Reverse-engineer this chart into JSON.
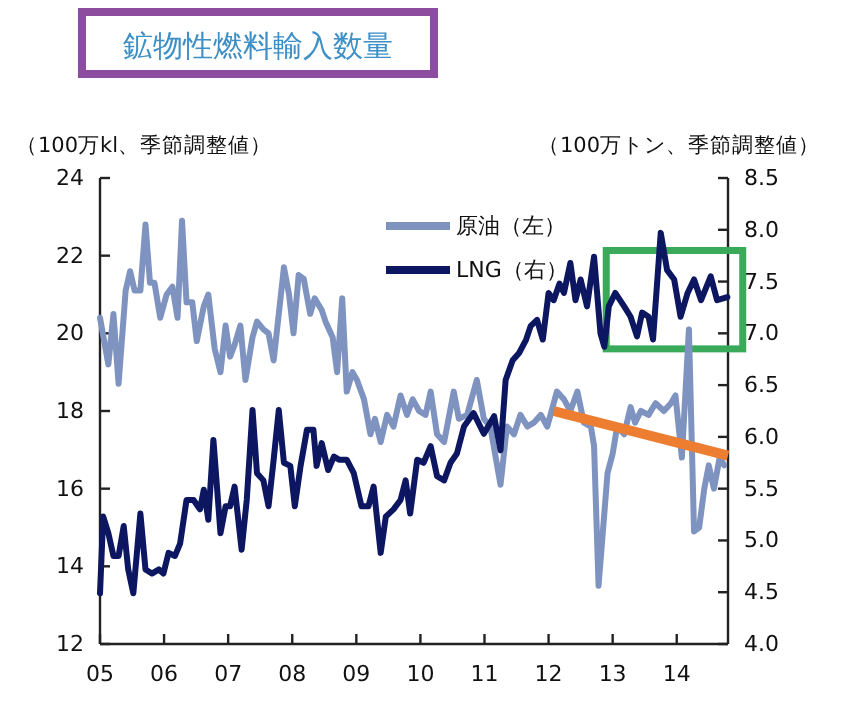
{
  "chart_data": {
    "type": "line",
    "title": "鉱物性燃料輸入数量",
    "ylabel": "（100万kl、季節調整値）",
    "y2label": "（100万トン、季節調整値）",
    "xlim": [
      2005,
      2014.8
    ],
    "xticks": [
      {
        "value": 2005,
        "label": "05"
      },
      {
        "value": 2006,
        "label": "06"
      },
      {
        "value": 2007,
        "label": "07"
      },
      {
        "value": 2008,
        "label": "08"
      },
      {
        "value": 2009,
        "label": "09"
      },
      {
        "value": 2010,
        "label": "10"
      },
      {
        "value": 2011,
        "label": "11"
      },
      {
        "value": 2012,
        "label": "12"
      },
      {
        "value": 2013,
        "label": "13"
      },
      {
        "value": 2014,
        "label": "14"
      }
    ],
    "ylim": [
      12,
      24
    ],
    "yticks": [
      12,
      14,
      16,
      18,
      20,
      22,
      24
    ],
    "y2lim": [
      4,
      8.5
    ],
    "y2ticks": [
      {
        "value": 4,
        "label": "4.0"
      },
      {
        "value": 4.5,
        "label": "4.5"
      },
      {
        "value": 5,
        "label": "5.0"
      },
      {
        "value": 5.5,
        "label": "5.5"
      },
      {
        "value": 6,
        "label": "6.0"
      },
      {
        "value": 6.5,
        "label": "6.5"
      },
      {
        "value": 7,
        "label": "7.0"
      },
      {
        "value": 7.5,
        "label": "7.5"
      },
      {
        "value": 8,
        "label": "8.0"
      },
      {
        "value": 8.5,
        "label": "8.5"
      }
    ],
    "legend": "top",
    "series": [
      {
        "name": "原油（左）",
        "color": "#7f93c0",
        "axis": "y",
        "x": [
          2005.0,
          2005.13,
          2005.21,
          2005.29,
          2005.4,
          2005.47,
          2005.54,
          2005.63,
          2005.71,
          2005.78,
          2005.85,
          2005.94,
          2006.04,
          2006.13,
          2006.21,
          2006.28,
          2006.35,
          2006.44,
          2006.51,
          2006.62,
          2006.69,
          2006.79,
          2006.88,
          2006.96,
          2007.03,
          2007.1,
          2007.19,
          2007.27,
          2007.38,
          2007.45,
          2007.55,
          2007.63,
          2007.71,
          2007.87,
          2007.95,
          2008.02,
          2008.1,
          2008.18,
          2008.28,
          2008.35,
          2008.46,
          2008.52,
          2008.63,
          2008.7,
          2008.78,
          2008.85,
          2008.94,
          2009.01,
          2009.12,
          2009.22,
          2009.29,
          2009.38,
          2009.48,
          2009.58,
          2009.69,
          2009.79,
          2009.88,
          2009.98,
          2010.08,
          2010.16,
          2010.26,
          2010.37,
          2010.52,
          2010.6,
          2010.73,
          2010.88,
          2010.99,
          2011.09,
          2011.25,
          2011.35,
          2011.46,
          2011.56,
          2011.67,
          2011.77,
          2011.88,
          2011.98,
          2012.13,
          2012.24,
          2012.34,
          2012.45,
          2012.55,
          2012.66,
          2012.71,
          2012.78,
          2012.92,
          2013.0,
          2013.07,
          2013.18,
          2013.28,
          2013.35,
          2013.44,
          2013.56,
          2013.67,
          2013.8,
          2013.91,
          2013.98,
          2014.08,
          2014.19,
          2014.27,
          2014.35,
          2014.43,
          2014.5,
          2014.58,
          2014.67,
          2014.74
        ],
        "values": [
          20.4,
          19.2,
          20.5,
          18.7,
          21.1,
          21.6,
          21.1,
          21.1,
          22.8,
          21.3,
          21.3,
          20.4,
          21.0,
          21.2,
          20.4,
          22.9,
          20.8,
          20.8,
          19.8,
          20.7,
          21.0,
          19.6,
          19.0,
          20.2,
          19.4,
          19.7,
          20.2,
          18.8,
          19.9,
          20.3,
          20.1,
          20.0,
          19.3,
          21.7,
          21.0,
          20.0,
          21.5,
          21.4,
          20.5,
          20.9,
          20.6,
          20.3,
          19.9,
          19.0,
          20.9,
          18.5,
          19.0,
          18.8,
          18.3,
          17.4,
          17.8,
          17.2,
          17.9,
          17.6,
          18.4,
          17.9,
          18.3,
          18.0,
          17.9,
          18.5,
          17.4,
          17.2,
          18.5,
          17.8,
          17.9,
          18.8,
          17.8,
          17.6,
          16.1,
          17.6,
          17.4,
          17.9,
          17.6,
          17.7,
          17.9,
          17.6,
          18.5,
          18.3,
          18.0,
          18.5,
          17.7,
          17.6,
          17.1,
          13.5,
          16.4,
          16.9,
          17.6,
          17.4,
          18.1,
          17.7,
          18.0,
          17.9,
          18.2,
          18.0,
          18.2,
          18.4,
          16.8,
          20.1,
          14.9,
          15.0,
          16.0,
          16.6,
          16.0,
          16.8,
          16.6
        ]
      },
      {
        "name": "LNG（右）",
        "color": "#0d1660",
        "axis": "y2",
        "x": [
          2005.0,
          2005.05,
          2005.13,
          2005.21,
          2005.29,
          2005.37,
          2005.44,
          2005.52,
          2005.63,
          2005.71,
          2005.81,
          2005.92,
          2005.99,
          2006.07,
          2006.17,
          2006.25,
          2006.35,
          2006.46,
          2006.56,
          2006.62,
          2006.69,
          2006.77,
          2006.88,
          2006.96,
          2007.03,
          2007.1,
          2007.21,
          2007.29,
          2007.38,
          2007.45,
          2007.55,
          2007.63,
          2007.71,
          2007.79,
          2007.87,
          2007.97,
          2008.04,
          2008.13,
          2008.23,
          2008.33,
          2008.38,
          2008.46,
          2008.56,
          2008.65,
          2008.73,
          2008.85,
          2008.96,
          2009.08,
          2009.19,
          2009.27,
          2009.38,
          2009.46,
          2009.58,
          2009.69,
          2009.77,
          2009.84,
          2009.95,
          2010.05,
          2010.16,
          2010.26,
          2010.37,
          2010.47,
          2010.57,
          2010.68,
          2010.83,
          2010.99,
          2011.15,
          2011.25,
          2011.33,
          2011.44,
          2011.54,
          2011.65,
          2011.72,
          2011.82,
          2011.91,
          2012.0,
          2012.08,
          2012.17,
          2012.24,
          2012.34,
          2012.42,
          2012.5,
          2012.6,
          2012.71,
          2012.81,
          2012.87,
          2012.94,
          2013.04,
          2013.18,
          2013.28,
          2013.38,
          2013.46,
          2013.56,
          2013.63,
          2013.75,
          2013.85,
          2013.96,
          2014.06,
          2014.17,
          2014.27,
          2014.38,
          2014.53,
          2014.63,
          2014.79
        ],
        "values": [
          4.49,
          5.23,
          5.07,
          4.85,
          4.85,
          5.14,
          4.72,
          4.49,
          5.26,
          4.72,
          4.68,
          4.72,
          4.68,
          4.88,
          4.85,
          4.97,
          5.39,
          5.39,
          5.3,
          5.49,
          5.2,
          5.97,
          5.07,
          5.33,
          5.33,
          5.52,
          4.91,
          5.39,
          6.26,
          5.65,
          5.58,
          5.33,
          5.78,
          6.26,
          5.75,
          5.72,
          5.33,
          5.72,
          6.07,
          6.07,
          5.72,
          5.94,
          5.68,
          5.81,
          5.78,
          5.78,
          5.65,
          5.33,
          5.33,
          5.52,
          4.88,
          5.23,
          5.3,
          5.39,
          5.58,
          5.26,
          5.78,
          5.75,
          5.91,
          5.62,
          5.58,
          5.75,
          5.84,
          6.1,
          6.23,
          6.03,
          6.2,
          5.87,
          6.55,
          6.74,
          6.81,
          6.94,
          7.07,
          7.13,
          6.94,
          7.39,
          7.32,
          7.48,
          7.39,
          7.68,
          7.32,
          7.52,
          7.26,
          7.74,
          7.0,
          6.87,
          7.26,
          7.39,
          7.26,
          7.16,
          6.97,
          7.2,
          7.16,
          6.94,
          7.97,
          7.61,
          7.52,
          7.16,
          7.39,
          7.52,
          7.32,
          7.55,
          7.32,
          7.35
        ]
      },
      {
        "type": "line",
        "color": "#ed7d31",
        "axis": "y",
        "x": [
          2012.08,
          2014.8
        ],
        "values": [
          18.0,
          16.85
        ]
      }
    ]
  }
}
